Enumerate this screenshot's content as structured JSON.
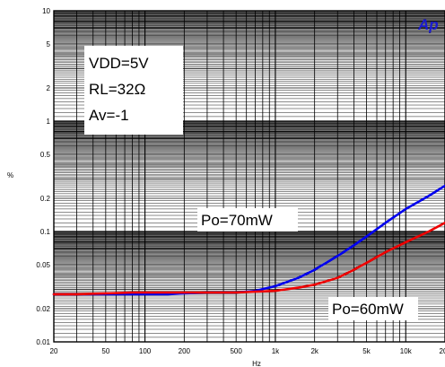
{
  "chart_data": {
    "type": "line",
    "title": "",
    "xlabel": "Hz",
    "ylabel": "%",
    "xscale": "log",
    "yscale": "log",
    "xlim": [
      20,
      20000
    ],
    "ylim": [
      0.01,
      10
    ],
    "grid": true,
    "x_ticks": [
      {
        "value": 20,
        "label": "20"
      },
      {
        "value": 50,
        "label": "50"
      },
      {
        "value": 100,
        "label": "100"
      },
      {
        "value": 200,
        "label": "200"
      },
      {
        "value": 500,
        "label": "500"
      },
      {
        "value": 1000,
        "label": "1k"
      },
      {
        "value": 2000,
        "label": "2k"
      },
      {
        "value": 5000,
        "label": "5k"
      },
      {
        "value": 10000,
        "label": "10k"
      },
      {
        "value": 20000,
        "label": "20k"
      }
    ],
    "y_ticks": [
      {
        "value": 0.01,
        "label": "0.01"
      },
      {
        "value": 0.02,
        "label": "0.02"
      },
      {
        "value": 0.05,
        "label": "0.05"
      },
      {
        "value": 0.1,
        "label": "0.1"
      },
      {
        "value": 0.2,
        "label": "0.2"
      },
      {
        "value": 0.5,
        "label": "0.5"
      },
      {
        "value": 1,
        "label": "1"
      },
      {
        "value": 2,
        "label": "2"
      },
      {
        "value": 5,
        "label": "5"
      },
      {
        "value": 10,
        "label": "10"
      }
    ],
    "series": [
      {
        "color": "#0000ee",
        "x": [
          20,
          30,
          50,
          80,
          100,
          150,
          200,
          300,
          500,
          700,
          1000,
          1500,
          2000,
          3000,
          4000,
          5000,
          7000,
          10000,
          15000,
          20000
        ],
        "y": [
          0.027,
          0.027,
          0.027,
          0.027,
          0.027,
          0.027,
          0.0275,
          0.028,
          0.028,
          0.029,
          0.032,
          0.038,
          0.045,
          0.06,
          0.075,
          0.09,
          0.12,
          0.16,
          0.21,
          0.26
        ]
      },
      {
        "color": "#ee0000",
        "x": [
          20,
          30,
          50,
          80,
          100,
          150,
          200,
          300,
          500,
          700,
          1000,
          1500,
          2000,
          3000,
          4000,
          5000,
          7000,
          10000,
          15000,
          20000
        ],
        "y": [
          0.027,
          0.027,
          0.0275,
          0.028,
          0.028,
          0.028,
          0.028,
          0.028,
          0.028,
          0.0285,
          0.029,
          0.031,
          0.033,
          0.038,
          0.045,
          0.052,
          0.065,
          0.08,
          0.1,
          0.12
        ]
      }
    ],
    "annotations": {
      "conditions": [
        "VDD=5V",
        "RL=32Ω",
        "Av=-1"
      ],
      "series_labels": [
        "Po=70mW",
        "Po=60mW"
      ]
    }
  },
  "logo": {
    "text": "Ap",
    "color": "#1b1bd0"
  }
}
